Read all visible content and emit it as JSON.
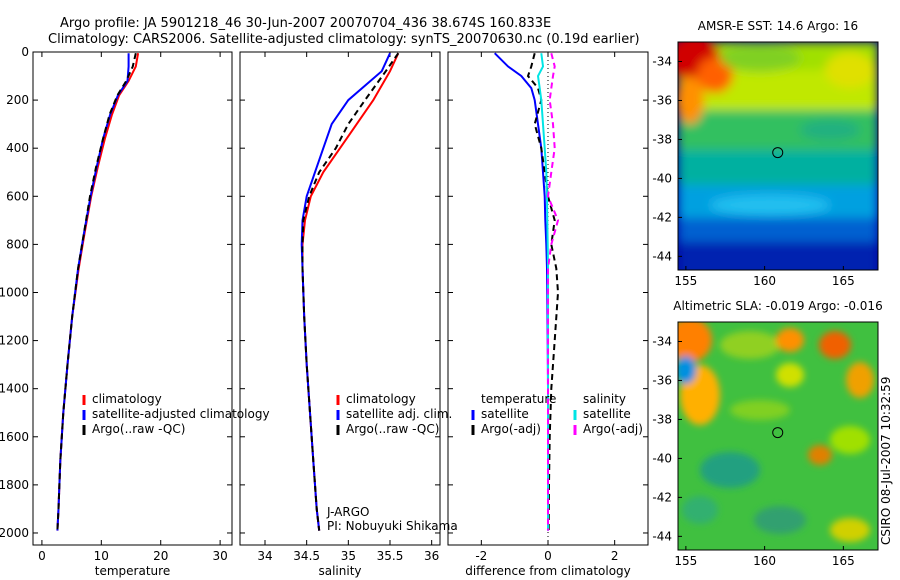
{
  "header": {
    "line1": "Argo profile: JA 5901218_46 30-Jun-2007 20070704_436 38.674S 160.833E",
    "line2": "Climatology: CARS2006. Satellite-adjusted climatology: synTS_20070630.nc (0.19d earlier)"
  },
  "side_label": "CSIRO 08-Jul-2007 10:32:59",
  "colors": {
    "climatology": "#ff0000",
    "satellite": "#0000ff",
    "argo": "#000000",
    "sal_satellite": "#00e5e5",
    "sal_argo": "#ff00ff"
  },
  "depth_axis": {
    "ticks": [
      0,
      200,
      400,
      600,
      800,
      1000,
      1200,
      1400,
      1600,
      1800,
      2000
    ],
    "tick_labels": [
      "0",
      "200",
      "400",
      "600",
      "800",
      "1000",
      "1200",
      "1400",
      "1600",
      "1800",
      "2000"
    ],
    "range": [
      0,
      2050
    ]
  },
  "chart_data": [
    {
      "type": "line",
      "id": "temperature",
      "xlabel": "temperature",
      "xlim": [
        -1.5,
        32
      ],
      "xticks": [
        0,
        10,
        20,
        30
      ],
      "xtick_labels": [
        "0",
        "10",
        "20",
        "30"
      ],
      "depth": [
        5,
        60,
        120,
        180,
        260,
        360,
        480,
        600,
        750,
        900,
        1100,
        1300,
        1500,
        1700,
        1900,
        1990
      ],
      "series": [
        {
          "name": "climatology",
          "color": "#ff0000",
          "values": [
            16.2,
            15.8,
            14.6,
            13.0,
            11.8,
            10.6,
            9.4,
            8.3,
            7.2,
            6.2,
            5.1,
            4.3,
            3.6,
            3.1,
            2.8,
            2.6
          ]
        },
        {
          "name": "satellite-adjusted climatology",
          "color": "#0000ff",
          "values": [
            14.6,
            14.6,
            14.4,
            12.8,
            11.5,
            10.3,
            9.2,
            8.2,
            7.1,
            6.1,
            5.1,
            4.3,
            3.6,
            3.1,
            2.8,
            2.6
          ]
        },
        {
          "name": "Argo(..raw -QC)",
          "color": "#000000",
          "dashed": true,
          "values": [
            15.8,
            15.3,
            14.2,
            12.7,
            11.4,
            10.3,
            9.1,
            8.1,
            7.1,
            6.1,
            5.1,
            4.3,
            3.6,
            3.1,
            2.8,
            2.6
          ]
        }
      ],
      "legend": [
        "climatology",
        "satellite-adjusted climatology",
        "Argo(..raw -QC)"
      ]
    },
    {
      "type": "line",
      "id": "salinity",
      "xlabel": "salinity",
      "xlim": [
        33.7,
        36.1
      ],
      "xticks": [
        34,
        34.5,
        35,
        35.5,
        36
      ],
      "xtick_labels": [
        "34",
        "34.5",
        "35",
        "35.5",
        "36"
      ],
      "depth": [
        5,
        80,
        200,
        300,
        400,
        500,
        600,
        700,
        800,
        900,
        1100,
        1300,
        1500,
        1700,
        1900,
        1990
      ],
      "series": [
        {
          "name": "climatology",
          "color": "#ff0000",
          "values": [
            35.6,
            35.5,
            35.3,
            35.1,
            34.9,
            34.7,
            34.55,
            34.48,
            34.45,
            34.45,
            34.47,
            34.5,
            34.54,
            34.58,
            34.62,
            34.65
          ]
        },
        {
          "name": "satellite adj. clim.",
          "color": "#0000ff",
          "values": [
            35.5,
            35.4,
            35.0,
            34.8,
            34.7,
            34.6,
            34.5,
            34.45,
            34.44,
            34.45,
            34.47,
            34.5,
            34.54,
            34.58,
            34.62,
            34.65
          ]
        },
        {
          "name": "Argo(..raw -QC)",
          "color": "#000000",
          "dashed": true,
          "values": [
            35.6,
            35.45,
            35.2,
            35.0,
            34.85,
            34.65,
            34.53,
            34.46,
            34.45,
            34.45,
            34.47,
            34.5,
            34.54,
            34.58,
            34.62,
            34.65
          ]
        }
      ],
      "legend": [
        "climatology",
        "satellite adj. clim.",
        "Argo(..raw -QC)"
      ],
      "annotation": [
        "J-ARGO",
        "PI: Nobuyuki Shikama"
      ]
    },
    {
      "type": "line",
      "id": "difference",
      "xlabel": "difference from climatology",
      "xlim": [
        -3.0,
        3.0
      ],
      "xticks": [
        -2,
        0,
        2
      ],
      "xtick_labels": [
        "-2",
        "0",
        "2"
      ],
      "depth": [
        5,
        60,
        100,
        150,
        200,
        300,
        400,
        500,
        600,
        700,
        800,
        900,
        1000,
        1200,
        1400,
        1600,
        1800,
        1990
      ],
      "series": [
        {
          "name": "temperature satellite",
          "color": "#0000ff",
          "values": [
            -1.6,
            -1.2,
            -0.8,
            -0.5,
            -0.4,
            -0.3,
            -0.2,
            -0.15,
            -0.1,
            -0.08,
            -0.05,
            -0.03,
            -0.02,
            -0.01,
            0,
            0,
            0,
            0
          ]
        },
        {
          "name": "temperature Argo(-adj)",
          "color": "#000000",
          "dashed": true,
          "values": [
            -0.4,
            -0.5,
            -0.6,
            -0.3,
            -0.2,
            -0.4,
            -0.2,
            -0.1,
            0.0,
            0.2,
            0.1,
            0.25,
            0.3,
            0.2,
            0.1,
            0.05,
            0.03,
            0.02
          ]
        },
        {
          "name": "salinity satellite",
          "color": "#00e5e5",
          "values": [
            -0.2,
            -0.15,
            -0.3,
            -0.25,
            -0.2,
            -0.15,
            -0.1,
            -0.05,
            -0.03,
            -0.02,
            -0.01,
            0,
            0,
            0,
            0,
            0,
            0,
            0
          ]
        },
        {
          "name": "salinity Argo(-adj)",
          "color": "#ff00ff",
          "dashed": true,
          "values": [
            0.1,
            0.2,
            0.15,
            0.1,
            0.05,
            0.15,
            0.2,
            0.1,
            0.0,
            0.3,
            0.1,
            0.0,
            0.0,
            0.0,
            0.0,
            0.0,
            0.0,
            0.0
          ]
        }
      ],
      "legend_headers": [
        "temperature",
        "salinity"
      ],
      "legend": [
        "satellite",
        "Argo(-adj)",
        "satellite",
        "Argo(-adj)"
      ]
    },
    {
      "type": "heatmap",
      "id": "sst",
      "title": "AMSR-E SST: 14.6  Argo: 16",
      "xlim": [
        154.5,
        167.2
      ],
      "ylim": [
        -44.7,
        -33
      ],
      "xticks": [
        155,
        160,
        165
      ],
      "xtick_labels": [
        "155",
        "160",
        "165"
      ],
      "yticks": [
        -34,
        -36,
        -38,
        -40,
        -42,
        -44
      ],
      "ytick_labels": [
        "-34",
        "-36",
        "-38",
        "-40",
        "-42",
        "-44"
      ],
      "marker": {
        "lon": 160.833,
        "lat": -38.674
      }
    },
    {
      "type": "heatmap",
      "id": "sla",
      "title": "Altimetric SLA: -0.019  Argo: -0.016",
      "xlim": [
        154.5,
        167.2
      ],
      "ylim": [
        -44.7,
        -33
      ],
      "xticks": [
        155,
        160,
        165
      ],
      "xtick_labels": [
        "155",
        "160",
        "165"
      ],
      "yticks": [
        -34,
        -36,
        -38,
        -40,
        -42,
        -44
      ],
      "ytick_labels": [
        "-34",
        "-36",
        "-38",
        "-40",
        "-42",
        "-44"
      ],
      "marker": {
        "lon": 160.833,
        "lat": -38.674
      }
    }
  ]
}
